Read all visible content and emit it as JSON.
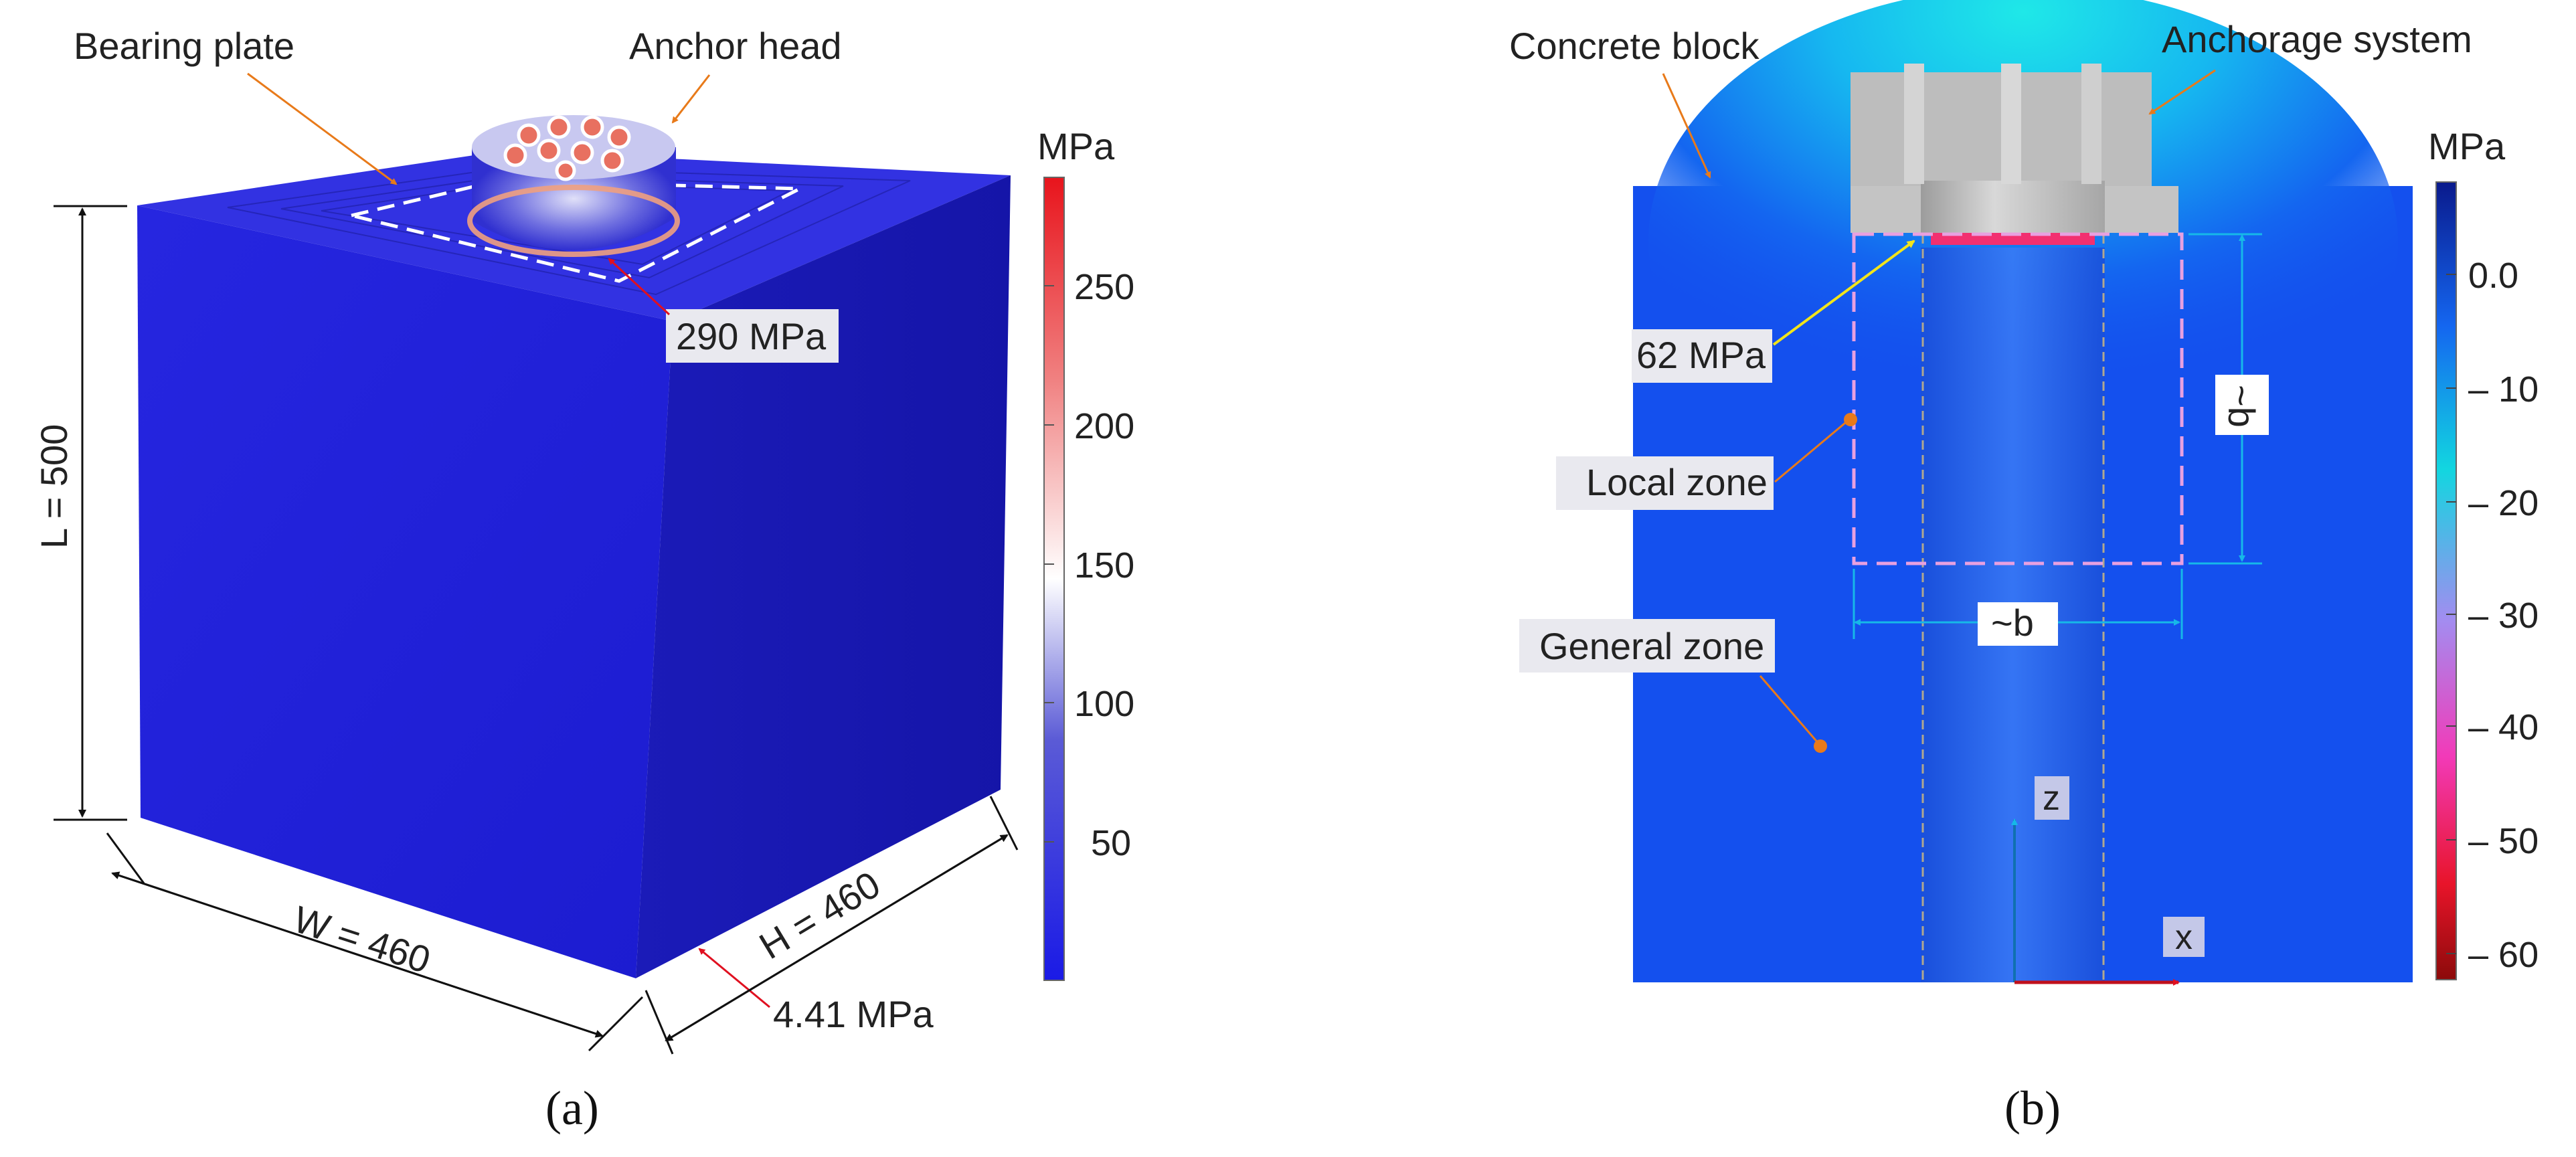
{
  "panel_a": {
    "label": "(a)",
    "callouts": {
      "bearing_plate": "Bearing plate",
      "anchor_head": "Anchor head",
      "max_stress": "290 MPa",
      "min_stress": "4.41 MPa"
    },
    "dimensions": {
      "length": "L = 500",
      "width": "W = 460",
      "height": "H = 460"
    },
    "colorbar": {
      "unit": "MPa",
      "ticks": [
        "250",
        "200",
        "150",
        "100",
        "50"
      ],
      "colors": [
        "#1a1ae6",
        "#5b5bd6",
        "#ffffff",
        "#f08080",
        "#e8141c"
      ]
    }
  },
  "panel_b": {
    "label": "(b)",
    "callouts": {
      "concrete_block": "Concrete block",
      "anchorage_system": "Anchorage system",
      "peak_stress": "62 MPa",
      "local_zone": "Local zone",
      "general_zone": "General zone"
    },
    "dimensions": {
      "height": "~b",
      "width": "~b"
    },
    "axes": {
      "z": "z",
      "x": "x"
    },
    "colorbar": {
      "unit": "MPa",
      "ticks": [
        "0.0",
        "– 10",
        "– 20",
        "– 30",
        "– 40",
        "– 50",
        "– 60"
      ],
      "colors": [
        "#0a1a8c",
        "#1466f0",
        "#12d6e0",
        "#a38cf0",
        "#f23ab8",
        "#e8142a",
        "#8c0a0a"
      ]
    }
  }
}
